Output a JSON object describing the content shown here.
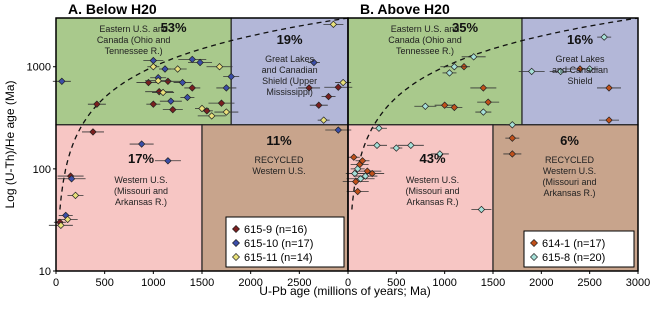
{
  "chart_data": {
    "type": "scatter",
    "y_scale": "log",
    "x_label": "U-Pb age (millions of years; Ma)",
    "y_label": "Log (U-Th)/He age (Ma)",
    "x_ticks": [
      "0",
      "500",
      "1000",
      "1500",
      "2000",
      "2500",
      "0",
      "500",
      "1000",
      "1500",
      "2000",
      "2500",
      "3000"
    ],
    "y_ticks": [
      "10",
      "100",
      "1000"
    ],
    "panels": [
      {
        "title": "A. Below H20",
        "xlim": [
          0,
          3000
        ],
        "ylim": [
          10,
          3000
        ],
        "regions": [
          {
            "pct": "53%",
            "lines": [
              "Eastern U.S. and",
              "Canada (Ohio and",
              "Tennessee R.)"
            ],
            "color": "#a9c98c"
          },
          {
            "pct": "19%",
            "lines": [
              "Great Lakes",
              "and Canadian",
              "Shield (Upper",
              "Mississippi)"
            ],
            "color": "#b3b7d8"
          },
          {
            "pct": "17%",
            "lines": [
              "Western U.S.",
              "(Missouri and",
              "Arkansas R.)"
            ],
            "color": "#f7c6c4"
          },
          {
            "pct": "11%",
            "lines": [
              "RECYCLED",
              "Western U.S."
            ],
            "color": "#c8a48c"
          }
        ],
        "legend": [
          {
            "label": "615-9 (n=16)",
            "color": "#7a1f1f"
          },
          {
            "label": "615-10 (n=17)",
            "color": "#3b4ea8"
          },
          {
            "label": "615-11 (n=14)",
            "color": "#e8e07a"
          }
        ],
        "series": [
          {
            "name": "615-9 (n=16)",
            "color": "#7a1f1f",
            "points": [
              [
                40,
                30
              ],
              [
                150,
                85
              ],
              [
                380,
                230
              ],
              [
                420,
                430
              ],
              [
                1000,
                430
              ],
              [
                1060,
                570
              ],
              [
                1150,
                720
              ],
              [
                1200,
                380
              ],
              [
                1400,
                620
              ],
              [
                1550,
                370
              ],
              [
                1700,
                440
              ],
              [
                2600,
                620
              ],
              [
                2700,
                420
              ],
              [
                2800,
                510
              ],
              [
                2900,
                630
              ],
              [
                950,
                700
              ]
            ]
          },
          {
            "name": "615-10 (n=17)",
            "color": "#3b4ea8",
            "points": [
              [
                60,
                720
              ],
              [
                100,
                35
              ],
              [
                160,
                80
              ],
              [
                880,
                175
              ],
              [
                1000,
                1150
              ],
              [
                1050,
                780
              ],
              [
                1120,
                950
              ],
              [
                1150,
                120
              ],
              [
                1180,
                460
              ],
              [
                1300,
                700
              ],
              [
                1350,
                500
              ],
              [
                1400,
                1180
              ],
              [
                1480,
                1100
              ],
              [
                1750,
                620
              ],
              [
                1800,
                800
              ],
              [
                2650,
                1100
              ],
              [
                2900,
                240
              ]
            ]
          },
          {
            "name": "615-11 (n=14)",
            "color": "#e8e07a",
            "points": [
              [
                50,
                28
              ],
              [
                120,
                32
              ],
              [
                200,
                55
              ],
              [
                1000,
                1000
              ],
              [
                1050,
                730
              ],
              [
                1100,
                560
              ],
              [
                1250,
                950
              ],
              [
                1500,
                390
              ],
              [
                1600,
                330
              ],
              [
                1750,
                360
              ],
              [
                2850,
                2600
              ],
              [
                2950,
                700
              ],
              [
                2750,
                300
              ],
              [
                1680,
                1000
              ]
            ]
          }
        ]
      },
      {
        "title": "B. Above H20",
        "xlim": [
          0,
          3000
        ],
        "ylim": [
          10,
          3000
        ],
        "regions": [
          {
            "pct": "35%",
            "lines": [
              "Eastern U.S. and",
              "Canada (Ohio and",
              "Tennessee R.)"
            ],
            "color": "#a9c98c"
          },
          {
            "pct": "16%",
            "lines": [
              "Great Lakes",
              "and Canadian",
              "Shield"
            ],
            "color": "#b3b7d8"
          },
          {
            "pct": "43%",
            "lines": [
              "Western U.S.",
              "(Missouri and",
              "Arkansas R.)"
            ],
            "color": "#f7c6c4"
          },
          {
            "pct": "6%",
            "lines": [
              "RECYCLED",
              "Western U.S.",
              "(Missouri and",
              "Arkansas R.)"
            ],
            "color": "#c8a48c"
          }
        ],
        "legend": [
          {
            "label": "614-1 (n=17)",
            "color": "#c0501a"
          },
          {
            "label": "615-8 (n=20)",
            "color": "#a6e0d8"
          }
        ],
        "series": [
          {
            "name": "614-1 (n=17)",
            "color": "#c0501a",
            "points": [
              [
                60,
                130
              ],
              [
                80,
                75
              ],
              [
                100,
                60
              ],
              [
                120,
                110
              ],
              [
                150,
                120
              ],
              [
                200,
                95
              ],
              [
                250,
                90
              ],
              [
                1000,
                420
              ],
              [
                1100,
                400
              ],
              [
                1200,
                1000
              ],
              [
                1400,
                620
              ],
              [
                1450,
                450
              ],
              [
                1700,
                140
              ],
              [
                1700,
                200
              ],
              [
                2400,
                950
              ],
              [
                2700,
                620
              ],
              [
                2700,
                300
              ]
            ]
          },
          {
            "name": "615-8 (n=20)",
            "color": "#a6e0d8",
            "points": [
              [
                70,
                90
              ],
              [
                100,
                100
              ],
              [
                130,
                80
              ],
              [
                180,
                85
              ],
              [
                300,
                170
              ],
              [
                320,
                250
              ],
              [
                500,
                160
              ],
              [
                650,
                170
              ],
              [
                800,
                410
              ],
              [
                950,
                140
              ],
              [
                1050,
                870
              ],
              [
                1100,
                1000
              ],
              [
                1300,
                1250
              ],
              [
                1380,
                40
              ],
              [
                1400,
                360
              ],
              [
                1700,
                270
              ],
              [
                1900,
                900
              ],
              [
                2200,
                900
              ],
              [
                2500,
                950
              ],
              [
                2650,
                1950
              ]
            ]
          }
        ]
      }
    ]
  }
}
